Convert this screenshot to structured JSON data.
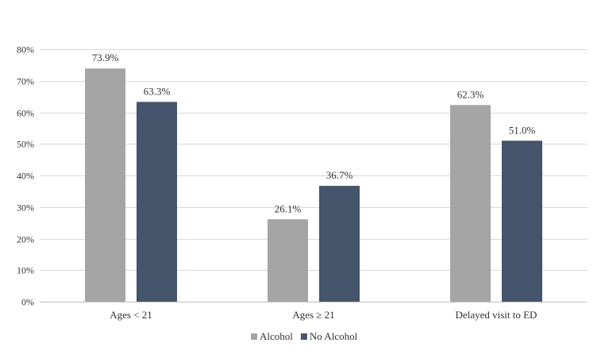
{
  "chart_data": {
    "type": "bar",
    "categories": [
      "Ages < 21",
      "Ages ≥ 21",
      "Delayed visit to ED"
    ],
    "series": [
      {
        "name": "Alcohol",
        "values": [
          73.9,
          26.1,
          62.3
        ],
        "labels": [
          "73.9%",
          "26.1%",
          "62.3%"
        ],
        "color": "#a5a5a5"
      },
      {
        "name": "No Alcohol",
        "values": [
          63.3,
          36.7,
          51.0
        ],
        "labels": [
          "63.3%",
          "36.7%",
          "51.0%"
        ],
        "color": "#44546a"
      }
    ],
    "ylim": [
      0,
      80
    ],
    "yticks": [
      "0%",
      "10%",
      "20%",
      "30%",
      "40%",
      "50%",
      "60%",
      "70%",
      "80%"
    ],
    "grid": true,
    "gridColor": "#d9d9d9",
    "legend": "bottom",
    "title": "",
    "xlabel": "",
    "ylabel": ""
  }
}
